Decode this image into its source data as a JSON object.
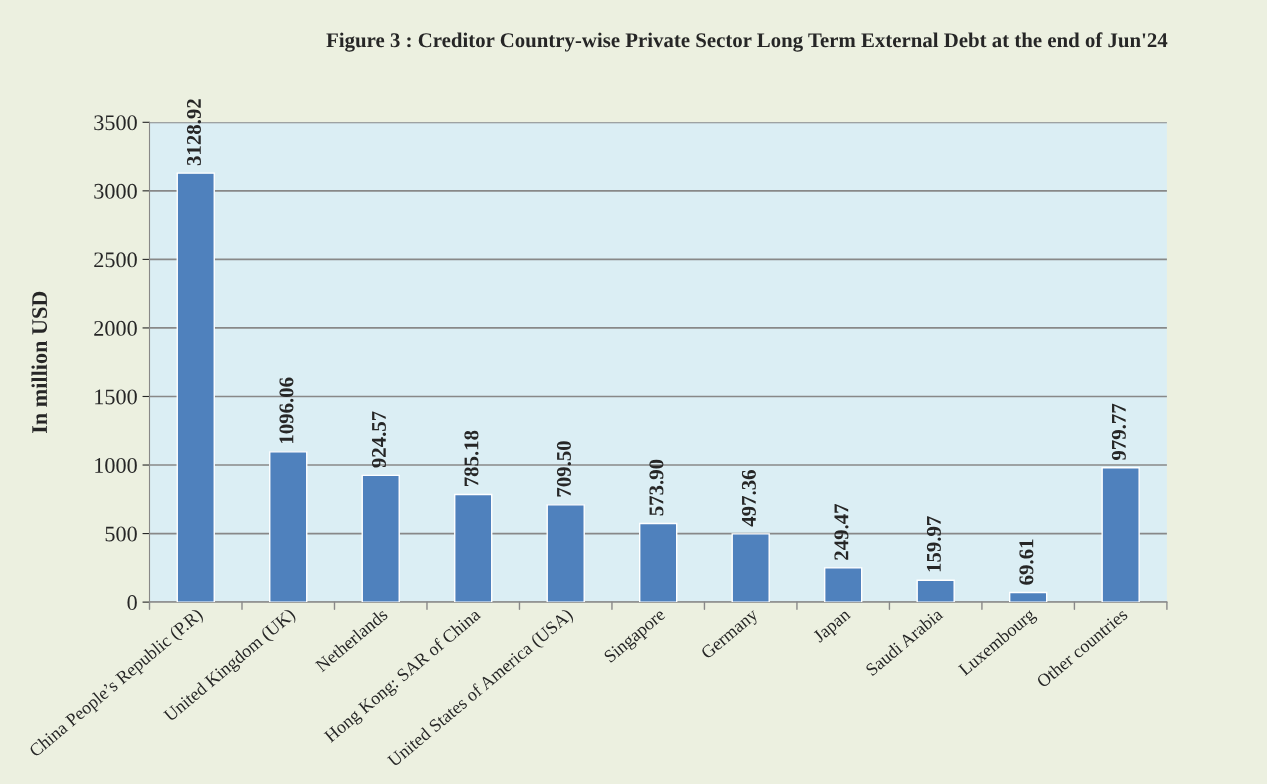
{
  "chart_data": {
    "type": "bar",
    "title": "Figure 3 : Creditor Country-wise Private Sector Long Term External Debt at the end of Jun'24",
    "ylabel": "In million USD",
    "categories": [
      "China People’s Republic (P.R)",
      "United Kingdom (UK)",
      "Netherlands",
      "Hong Kong: SAR of China",
      "United States of America (USA)",
      "Singapore",
      "Germany",
      "Japan",
      "Saudi Arabia",
      "Luxembourg",
      "Other countries"
    ],
    "values": [
      3128.92,
      1096.06,
      924.57,
      785.18,
      709.5,
      573.9,
      497.36,
      249.47,
      159.97,
      69.61,
      979.77
    ],
    "value_labels": [
      "3128.92",
      "1096.06",
      "924.57",
      "785.18",
      "709.50",
      "573.90",
      "497.36",
      "249.47",
      "159.97",
      "69.61",
      "979.77"
    ],
    "color": "#4f81bd",
    "ylim": [
      0,
      3500
    ],
    "yticks": [
      0,
      500,
      1000,
      1500,
      2000,
      2500,
      3000,
      3500
    ],
    "grid": "y"
  }
}
